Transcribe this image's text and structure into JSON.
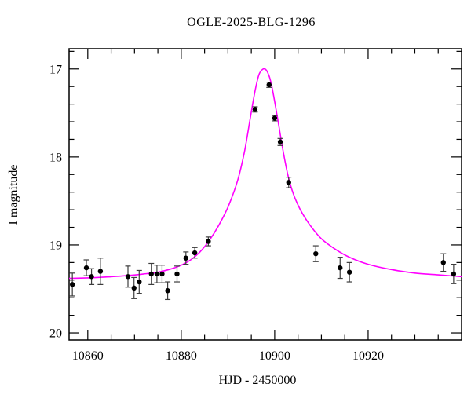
{
  "title": "OGLE-2025-BLG-1296",
  "colors": {
    "background": "#ffffff",
    "frame": "#000000",
    "text": "#000000",
    "model_curve": "#ff00ff",
    "data_points": "#000000",
    "error_bars": "#3d3d3d"
  },
  "chart_data": {
    "type": "scatter",
    "title": "OGLE-2025-BLG-1296",
    "xlabel": "HJD - 2450000",
    "ylabel": "I magnitude",
    "xlim": [
      10856,
      10940
    ],
    "ylim": [
      20.08,
      16.77
    ],
    "y_axis_inverted": true,
    "grid": false,
    "legend_position": "none",
    "x_major_ticks": [
      10860,
      10880,
      10900,
      10920
    ],
    "x_major_tick_labels": [
      "10860",
      "10880",
      "10900",
      "10920"
    ],
    "x_minor_tick_step": 5,
    "y_major_ticks": [
      17,
      18,
      19,
      20
    ],
    "y_major_tick_labels": [
      "17",
      "18",
      "19",
      "20"
    ],
    "y_minor_tick_step": 0.2,
    "series": [
      {
        "name": "OGLE I-band photometry",
        "type": "scatter_with_errorbars",
        "marker": "filled-circle",
        "points": [
          {
            "t": 10856.7,
            "mag": 19.45,
            "err": 0.13
          },
          {
            "t": 10859.7,
            "mag": 19.26,
            "err": 0.09
          },
          {
            "t": 10860.8,
            "mag": 19.36,
            "err": 0.09
          },
          {
            "t": 10862.7,
            "mag": 19.3,
            "err": 0.15
          },
          {
            "t": 10868.6,
            "mag": 19.36,
            "err": 0.12
          },
          {
            "t": 10869.9,
            "mag": 19.49,
            "err": 0.12
          },
          {
            "t": 10871.0,
            "mag": 19.42,
            "err": 0.13
          },
          {
            "t": 10873.6,
            "mag": 19.33,
            "err": 0.12
          },
          {
            "t": 10874.8,
            "mag": 19.33,
            "err": 0.1
          },
          {
            "t": 10875.9,
            "mag": 19.33,
            "err": 0.1
          },
          {
            "t": 10877.1,
            "mag": 19.52,
            "err": 0.1
          },
          {
            "t": 10879.1,
            "mag": 19.33,
            "err": 0.09
          },
          {
            "t": 10881.0,
            "mag": 19.15,
            "err": 0.07
          },
          {
            "t": 10882.9,
            "mag": 19.09,
            "err": 0.06
          },
          {
            "t": 10885.8,
            "mag": 18.96,
            "err": 0.05
          },
          {
            "t": 10895.8,
            "mag": 17.46,
            "err": 0.03
          },
          {
            "t": 10898.8,
            "mag": 17.18,
            "err": 0.03
          },
          {
            "t": 10900.0,
            "mag": 17.56,
            "err": 0.03
          },
          {
            "t": 10901.2,
            "mag": 17.83,
            "err": 0.04
          },
          {
            "t": 10903.0,
            "mag": 18.29,
            "err": 0.06
          },
          {
            "t": 10908.8,
            "mag": 19.1,
            "err": 0.09
          },
          {
            "t": 10914.0,
            "mag": 19.26,
            "err": 0.12
          },
          {
            "t": 10916.0,
            "mag": 19.31,
            "err": 0.11
          },
          {
            "t": 10936.1,
            "mag": 19.2,
            "err": 0.1
          },
          {
            "t": 10938.3,
            "mag": 19.33,
            "err": 0.11
          }
        ]
      },
      {
        "name": "microlensing model",
        "type": "line",
        "model_params": {
          "t0": 10897.9,
          "peak_mag": 17.0,
          "baseline_mag": 19.42
        },
        "samples": [
          [
            10856.0,
            19.38
          ],
          [
            10862.0,
            19.37
          ],
          [
            10868.0,
            19.35
          ],
          [
            10872.0,
            19.33
          ],
          [
            10875.0,
            19.31
          ],
          [
            10878.0,
            19.27
          ],
          [
            10880.0,
            19.23
          ],
          [
            10882.0,
            19.17
          ],
          [
            10884.0,
            19.08
          ],
          [
            10886.0,
            18.95
          ],
          [
            10888.0,
            18.78
          ],
          [
            10890.0,
            18.57
          ],
          [
            10892.0,
            18.28
          ],
          [
            10893.5,
            17.95
          ],
          [
            10894.8,
            17.55
          ],
          [
            10895.8,
            17.25
          ],
          [
            10896.6,
            17.07
          ],
          [
            10897.3,
            17.01
          ],
          [
            10897.9,
            17.0
          ],
          [
            10898.5,
            17.04
          ],
          [
            10899.2,
            17.15
          ],
          [
            10900.0,
            17.37
          ],
          [
            10900.9,
            17.65
          ],
          [
            10901.8,
            17.93
          ],
          [
            10902.8,
            18.2
          ],
          [
            10904.0,
            18.42
          ],
          [
            10905.5,
            18.6
          ],
          [
            10907.5,
            18.77
          ],
          [
            10910.0,
            18.93
          ],
          [
            10913.0,
            19.05
          ],
          [
            10916.0,
            19.14
          ],
          [
            10920.0,
            19.22
          ],
          [
            10925.0,
            19.28
          ],
          [
            10930.0,
            19.32
          ],
          [
            10935.0,
            19.34
          ],
          [
            10940.0,
            19.36
          ]
        ]
      }
    ]
  }
}
